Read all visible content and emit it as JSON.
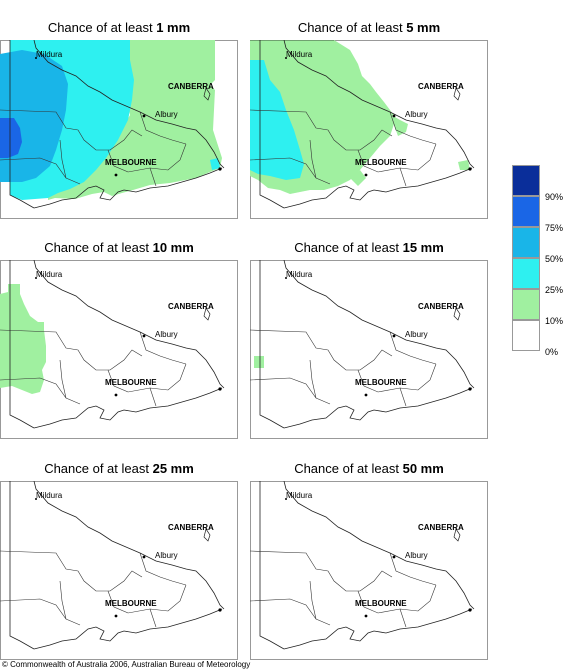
{
  "panels": [
    {
      "title_prefix": "Chance of at least ",
      "title_amount": "1 mm"
    },
    {
      "title_prefix": "Chance of at least ",
      "title_amount": "5 mm"
    },
    {
      "title_prefix": "Chance of at least ",
      "title_amount": "10 mm"
    },
    {
      "title_prefix": "Chance of at least ",
      "title_amount": "15 mm"
    },
    {
      "title_prefix": "Chance of at least ",
      "title_amount": "25 mm"
    },
    {
      "title_prefix": "Chance of at least ",
      "title_amount": "50 mm"
    }
  ],
  "places": {
    "mildura": "Mildura",
    "canberra": "CANBERRA",
    "albury": "Albury",
    "melbourne": "MELBOURNE"
  },
  "legend": {
    "labels": [
      "90%",
      "75%",
      "50%",
      "25%",
      "10%",
      "0%"
    ],
    "colors": {
      "gt90": "#0a2e9a",
      "p75_90": "#1a66e6",
      "p50_75": "#19b5e8",
      "p25_50": "#2ef0f0",
      "p10_25": "#a0f0a0",
      "p0_10": "#ffffff"
    }
  },
  "colors": {
    "green": "#a0f0a0",
    "cyan": "#2ef0f0",
    "blue": "#19b5e8",
    "darkblue": "#1a66e6",
    "navy": "#0a2e9a",
    "border": "#999999",
    "outline": "#222222"
  },
  "copyright": "© Commonwealth of Australia 2006, Australian Bureau of Meteorology"
}
